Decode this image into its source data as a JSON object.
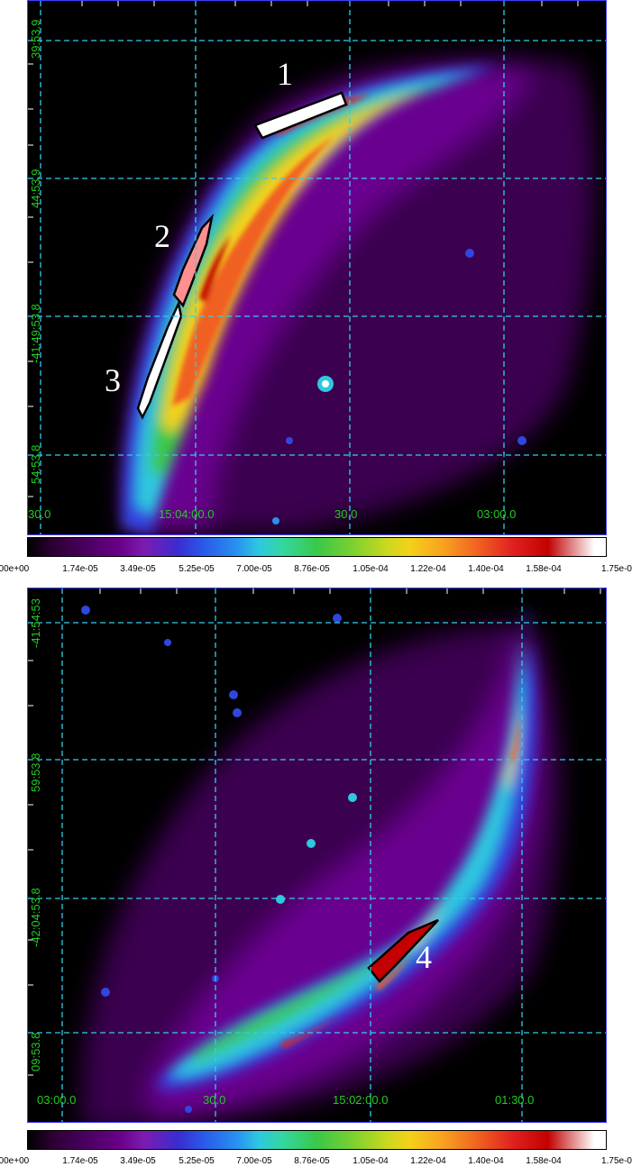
{
  "panels": {
    "top": {
      "dec_labels": [
        "39:53.9",
        "44:53.9",
        "-41:49:53.8",
        "54:53.8"
      ],
      "ra_labels": [
        "30.0",
        "15:04:00.0",
        "30.0",
        "03:00.0"
      ],
      "region_labels": [
        "1",
        "2",
        "3"
      ]
    },
    "bottom": {
      "dec_labels": [
        "-41:54:53",
        "59:53.8",
        "-42:04:53.8",
        "09:53.8"
      ],
      "ra_labels": [
        "03:00.0",
        "30.0",
        "15:02:00.0",
        "01:30.0"
      ],
      "region_labels": [
        "4"
      ]
    }
  },
  "colorbar": {
    "tick_labels": [
      ".00e+00",
      "1.74e-05",
      "3.49e-05",
      "5.25e-05",
      "7.00e-05",
      "8.76e-05",
      "1.05e-04",
      "1.22e-04",
      "1.40e-04",
      "1.58e-04",
      "1.75e-0"
    ]
  },
  "colors": {
    "grid": "#33ccee",
    "axis_label": "#22cc22",
    "background": "#000000",
    "region_outline": "#000000"
  }
}
